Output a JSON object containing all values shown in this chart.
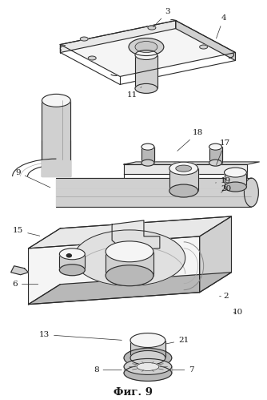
{
  "title": "Фиг. 9",
  "background_color": "#ffffff",
  "line_color": "#2a2a2a",
  "label_color": "#1a1a1a",
  "fig_width": 3.34,
  "fig_height": 4.99,
  "dpi": 100,
  "gray_light": "#e8e8e8",
  "gray_mid": "#d0d0d0",
  "gray_dark": "#b8b8b8",
  "white": "#f5f5f5"
}
